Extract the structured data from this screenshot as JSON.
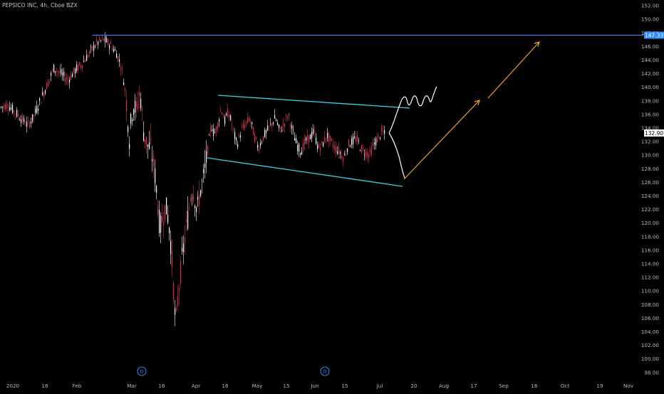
{
  "chart_title": "PEPSICO INC, 4h, Cboe BZX",
  "colors": {
    "background": "#000000",
    "up_candle": "#ffffff",
    "down_candle": "#e0245e",
    "resistance_line": "#2f8bff",
    "channel_lines": "#35d3e6",
    "projection_path": "#ffffff",
    "target_arrows": "#f0a020",
    "axis_text": "#b8b8b8",
    "price_badge": "#2f8bff",
    "last_badge": "#ffffff"
  },
  "badges": {
    "resistance": "147.33",
    "last_price": "132.90"
  },
  "event_markers": [
    "D",
    "D"
  ],
  "chart_data": {
    "type": "candlestick",
    "symbol": "PEPSICO INC",
    "timeframe": "4h",
    "exchange": "Cboe BZX",
    "y_range": [
      97,
      152.5
    ],
    "y_ticks": [
      98,
      100,
      102,
      104,
      106,
      108,
      110,
      112,
      114,
      116,
      118,
      120,
      122,
      124,
      126,
      128,
      130,
      132,
      134,
      136,
      138,
      140,
      142,
      144,
      146,
      148,
      150,
      152
    ],
    "y_tick_labels": [
      "98.00",
      "100.00",
      "102.00",
      "104.00",
      "106.00",
      "108.00",
      "110.00",
      "112.00",
      "114.00",
      "116.00",
      "118.00",
      "120.00",
      "122.00",
      "124.00",
      "126.00",
      "128.00",
      "130.00",
      "132.00",
      "134.00",
      "136.00",
      "138.00",
      "140.00",
      "142.00",
      "144.00",
      "146.00",
      "148.00",
      "150.00",
      "152.00"
    ],
    "x_tick_labels": [
      "2020",
      "16",
      "Feb",
      "Mar",
      "16",
      "Apr",
      "16",
      "May",
      "15",
      "Jun",
      "15",
      "Jul",
      "20",
      "Aug",
      "17",
      "Sep",
      "16",
      "Oct",
      "19",
      "Nov"
    ],
    "price_path": [
      [
        0,
        137.0
      ],
      [
        10,
        137.4
      ],
      [
        20,
        136.4
      ],
      [
        30,
        135.3
      ],
      [
        38,
        134.4
      ],
      [
        46,
        135.5
      ],
      [
        55,
        137.8
      ],
      [
        65,
        140.2
      ],
      [
        75,
        142.8
      ],
      [
        85,
        142.0
      ],
      [
        95,
        141.0
      ],
      [
        105,
        142.5
      ],
      [
        115,
        143.5
      ],
      [
        125,
        145.0
      ],
      [
        135,
        146.5
      ],
      [
        145,
        147.0
      ],
      [
        155,
        146.2
      ],
      [
        163,
        145.0
      ],
      [
        170,
        143.0
      ],
      [
        176,
        139.0
      ],
      [
        181,
        132.5
      ],
      [
        186,
        137.5
      ],
      [
        191,
        136.5
      ],
      [
        196,
        139.5
      ],
      [
        201,
        133.5
      ],
      [
        206,
        131.5
      ],
      [
        211,
        131.0
      ],
      [
        216,
        128.0
      ],
      [
        220,
        124.0
      ],
      [
        224,
        119.0
      ],
      [
        228,
        121.0
      ],
      [
        232,
        122.5
      ],
      [
        236,
        120.5
      ],
      [
        240,
        116.0
      ],
      [
        243,
        110.5
      ],
      [
        246,
        104.5
      ],
      [
        249,
        108.5
      ],
      [
        252,
        112.0
      ],
      [
        256,
        115.5
      ],
      [
        260,
        118.5
      ],
      [
        264,
        121.5
      ],
      [
        268,
        125.0
      ],
      [
        272,
        124.5
      ],
      [
        276,
        121.5
      ],
      [
        280,
        124.5
      ],
      [
        284,
        126.0
      ],
      [
        288,
        128.5
      ],
      [
        292,
        131.5
      ],
      [
        296,
        134.5
      ],
      [
        300,
        133.0
      ],
      [
        305,
        134.5
      ],
      [
        310,
        137.0
      ],
      [
        315,
        135.0
      ],
      [
        320,
        136.5
      ],
      [
        326,
        134.0
      ],
      [
        332,
        131.5
      ],
      [
        338,
        133.5
      ],
      [
        344,
        134.5
      ],
      [
        350,
        135.5
      ],
      [
        356,
        133.0
      ],
      [
        362,
        131.0
      ],
      [
        368,
        132.5
      ],
      [
        374,
        133.5
      ],
      [
        380,
        134.5
      ],
      [
        386,
        135.5
      ],
      [
        392,
        133.5
      ],
      [
        398,
        134.5
      ],
      [
        404,
        136.0
      ],
      [
        410,
        133.5
      ],
      [
        416,
        131.5
      ],
      [
        422,
        130.5
      ],
      [
        428,
        132.0
      ],
      [
        434,
        132.5
      ],
      [
        440,
        133.5
      ],
      [
        446,
        131.0
      ],
      [
        452,
        131.5
      ],
      [
        458,
        133.0
      ],
      [
        464,
        132.0
      ],
      [
        470,
        131.0
      ],
      [
        476,
        130.5
      ],
      [
        482,
        129.5
      ],
      [
        488,
        131.5
      ],
      [
        494,
        132.0
      ],
      [
        500,
        132.5
      ],
      [
        506,
        131.0
      ],
      [
        512,
        130.5
      ],
      [
        518,
        130.0
      ],
      [
        524,
        131.5
      ],
      [
        530,
        132.5
      ],
      [
        536,
        133.5
      ],
      [
        540,
        132.9
      ]
    ],
    "annotations": {
      "resistance_level": 147.33,
      "channel_upper": [
        [
          138.5,
          "Apr 10"
        ],
        [
          136.6,
          "Jul 20"
        ]
      ],
      "channel_lower": [
        [
          129.6,
          "Apr 1"
        ],
        [
          125.4,
          "Jul 20"
        ]
      ],
      "targets": [
        138.0,
        146.7
      ]
    }
  }
}
